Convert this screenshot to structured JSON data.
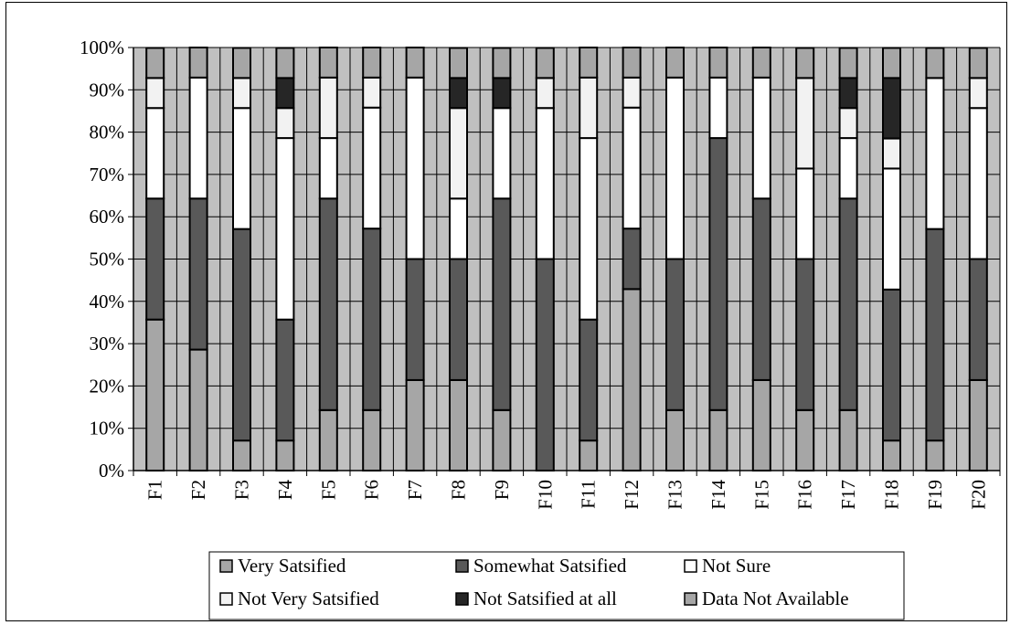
{
  "chart_data": {
    "type": "bar",
    "stacked": true,
    "normalized": true,
    "title": "",
    "xlabel": "",
    "ylabel": "",
    "ylim": [
      0,
      100
    ],
    "yticks": [
      "0%",
      "10%",
      "20%",
      "30%",
      "40%",
      "50%",
      "60%",
      "70%",
      "80%",
      "90%",
      "100%"
    ],
    "categories": [
      "F1",
      "F2",
      "F3",
      "F4",
      "F5",
      "F6",
      "F7",
      "F8",
      "F9",
      "F10",
      "F11",
      "F12",
      "F13",
      "F14",
      "F15",
      "F16",
      "F17",
      "F18",
      "F19",
      "F20"
    ],
    "series": [
      {
        "name": "Very Satsified",
        "color": "#a6a6a6",
        "values": [
          35.7,
          28.6,
          7.1,
          7.1,
          14.3,
          14.3,
          21.4,
          21.4,
          14.3,
          0,
          7.1,
          42.9,
          14.3,
          14.3,
          21.4,
          14.3,
          14.3,
          7.1,
          7.1,
          21.4
        ]
      },
      {
        "name": "Somewhat Satsified",
        "color": "#595959",
        "values": [
          28.6,
          35.7,
          50.0,
          28.6,
          50.0,
          42.9,
          28.6,
          28.6,
          50.0,
          50.0,
          28.6,
          14.3,
          35.7,
          64.3,
          42.9,
          35.7,
          50.0,
          35.7,
          50.0,
          28.6
        ]
      },
      {
        "name": "Not Sure",
        "color": "#ffffff",
        "values": [
          21.4,
          28.6,
          28.6,
          42.9,
          14.3,
          28.6,
          42.9,
          14.3,
          21.4,
          35.7,
          42.9,
          28.6,
          42.9,
          14.3,
          28.6,
          21.4,
          14.3,
          28.6,
          35.7,
          35.7
        ]
      },
      {
        "name": "Not Very Satsified",
        "color": "#f2f2f2",
        "values": [
          7.1,
          0,
          7.1,
          7.1,
          14.3,
          7.1,
          0,
          21.4,
          0,
          7.1,
          14.3,
          7.1,
          0,
          0,
          0,
          21.4,
          7.1,
          7.1,
          0,
          7.1
        ]
      },
      {
        "name": "Not Satsified at all",
        "color": "#262626",
        "values": [
          0,
          0,
          0,
          7.1,
          0,
          0,
          0,
          7.1,
          7.1,
          0,
          0,
          0,
          0,
          0,
          0,
          0,
          7.1,
          14.3,
          0,
          0
        ]
      },
      {
        "name": "Data Not Available",
        "color": "#a6a6a6",
        "values": [
          7.1,
          7.1,
          7.1,
          7.1,
          7.1,
          7.1,
          7.1,
          7.1,
          7.1,
          7.1,
          7.1,
          7.1,
          7.1,
          7.1,
          7.1,
          7.1,
          7.1,
          7.1,
          7.1,
          7.1
        ]
      }
    ],
    "plot_background": "#c0c0c0",
    "grid": true,
    "legend_position": "bottom"
  }
}
